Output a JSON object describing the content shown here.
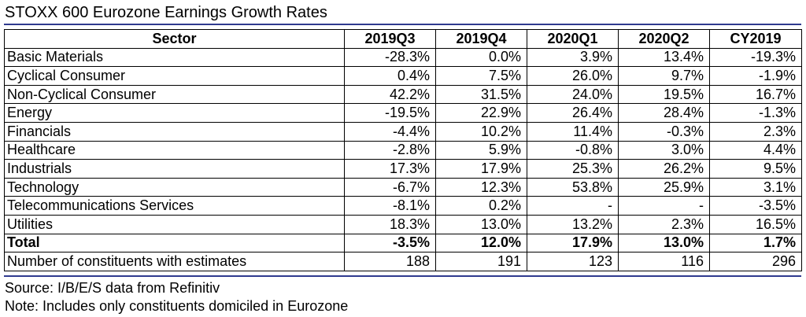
{
  "title": "STOXX 600 Eurozone Earnings Growth Rates",
  "accent_color": "#2f3a8f",
  "table": {
    "headers": [
      "Sector",
      "2019Q3",
      "2019Q4",
      "2020Q1",
      "2020Q2",
      "CY2019"
    ],
    "rows": [
      {
        "sector": "Basic Materials",
        "values": [
          "-28.3%",
          "0.0%",
          "3.9%",
          "13.4%",
          "-19.3%"
        ]
      },
      {
        "sector": "Cyclical Consumer",
        "values": [
          "0.4%",
          "7.5%",
          "26.0%",
          "9.7%",
          "-1.9%"
        ]
      },
      {
        "sector": "Non-Cyclical Consumer",
        "values": [
          "42.2%",
          "31.5%",
          "24.0%",
          "19.5%",
          "16.7%"
        ]
      },
      {
        "sector": "Energy",
        "values": [
          "-19.5%",
          "22.9%",
          "26.4%",
          "28.4%",
          "-1.3%"
        ]
      },
      {
        "sector": "Financials",
        "values": [
          "-4.4%",
          "10.2%",
          "11.4%",
          "-0.3%",
          "2.3%"
        ]
      },
      {
        "sector": "Healthcare",
        "values": [
          "-2.8%",
          "5.9%",
          "-0.8%",
          "3.0%",
          "4.4%"
        ]
      },
      {
        "sector": "Industrials",
        "values": [
          "17.3%",
          "17.9%",
          "25.3%",
          "26.2%",
          "9.5%"
        ]
      },
      {
        "sector": "Technology",
        "values": [
          "-6.7%",
          "12.3%",
          "53.8%",
          "25.9%",
          "3.1%"
        ]
      },
      {
        "sector": "Telecommunications Services",
        "values": [
          "-8.1%",
          "0.2%",
          "-",
          "-",
          "-3.5%"
        ]
      },
      {
        "sector": "Utilities",
        "values": [
          "18.3%",
          "13.0%",
          "13.2%",
          "2.3%",
          "16.5%"
        ]
      },
      {
        "sector": "Total",
        "values": [
          "-3.5%",
          "12.0%",
          "17.9%",
          "13.0%",
          "1.7%"
        ]
      },
      {
        "sector": "Number of constituents with estimates",
        "values": [
          "188",
          "191",
          "123",
          "116",
          "296"
        ]
      }
    ]
  },
  "footnotes": {
    "source": "Source: I/B/E/S data from Refinitiv",
    "note": "Note: Includes only constituents domiciled in Eurozone"
  }
}
